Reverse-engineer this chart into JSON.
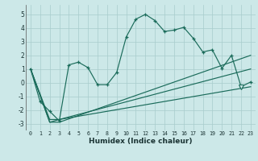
{
  "xlabel": "Humidex (Indice chaleur)",
  "bg_color": "#cce8e8",
  "line_color": "#1a6b5a",
  "grid_color": "#a8cccc",
  "xlim": [
    -0.5,
    23.5
  ],
  "ylim": [
    -3.5,
    5.7
  ],
  "xticks": [
    0,
    1,
    2,
    3,
    4,
    5,
    6,
    7,
    8,
    9,
    10,
    11,
    12,
    13,
    14,
    15,
    16,
    17,
    18,
    19,
    20,
    21,
    22,
    23
  ],
  "yticks": [
    -3,
    -2,
    -1,
    0,
    1,
    2,
    3,
    4,
    5
  ],
  "line1_x": [
    0,
    1,
    2,
    3,
    4,
    5,
    6,
    7,
    8,
    9,
    10,
    11,
    12,
    13,
    14,
    15,
    16,
    17,
    18,
    19,
    20,
    21,
    22,
    23
  ],
  "line1_y": [
    1.0,
    -1.4,
    -2.1,
    -2.8,
    1.3,
    1.5,
    1.1,
    -0.15,
    -0.15,
    0.75,
    3.35,
    4.65,
    5.0,
    4.55,
    3.75,
    3.85,
    4.05,
    3.25,
    2.25,
    2.4,
    1.05,
    2.0,
    -0.3,
    0.05
  ],
  "line2_x": [
    0,
    2,
    3,
    23
  ],
  "line2_y": [
    1.0,
    -2.9,
    -2.9,
    2.0
  ],
  "line3_x": [
    0,
    2,
    3,
    23
  ],
  "line3_y": [
    1.0,
    -2.9,
    -2.7,
    1.0
  ],
  "line4_x": [
    0,
    2,
    3,
    23
  ],
  "line4_y": [
    1.0,
    -2.7,
    -2.7,
    -0.3
  ],
  "v_marker_x": [
    22
  ],
  "v_marker_y": [
    -0.3
  ]
}
